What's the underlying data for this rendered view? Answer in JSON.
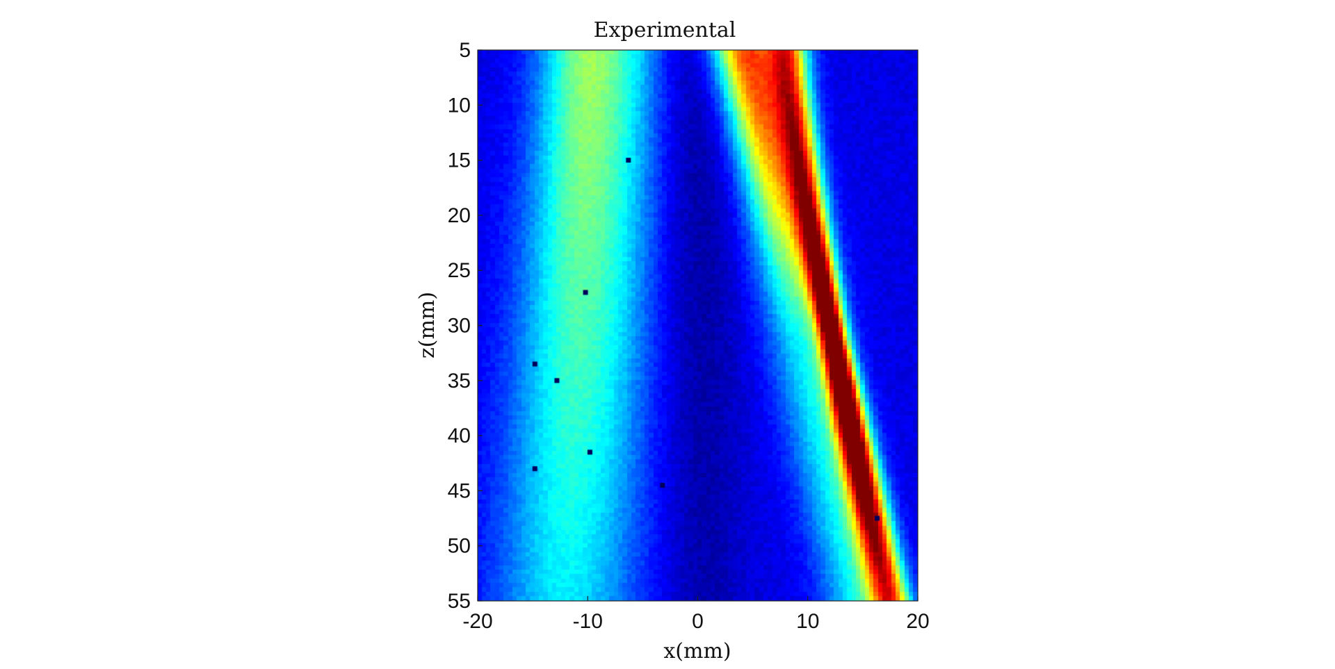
{
  "chart_data": {
    "type": "heatmap",
    "title": "Experimental",
    "xlabel": "x(mm)",
    "ylabel": "z(mm)",
    "xlim": [
      -20,
      20
    ],
    "ylim": [
      5,
      55
    ],
    "y_reversed": true,
    "colormap": "jet",
    "grid": false,
    "x_ticks": [
      -20,
      -10,
      0,
      10,
      20
    ],
    "x_tick_labels": [
      "-20",
      "-10",
      "0",
      "10",
      "20"
    ],
    "y_ticks": [
      5,
      10,
      15,
      20,
      25,
      30,
      35,
      40,
      45,
      50,
      55
    ],
    "y_tick_labels": [
      "5",
      "10",
      "15",
      "20",
      "25",
      "30",
      "35",
      "40",
      "45",
      "50",
      "55"
    ],
    "grid_size": {
      "nx": 100,
      "nz": 125
    },
    "features": [
      {
        "kind": "main-beam",
        "x_start": 8.2,
        "z_start": 5,
        "x_end": 17.5,
        "z_end": 55,
        "peak_intensity": 1.0,
        "peak_z": 36
      },
      {
        "kind": "left-beam",
        "x_start": -10,
        "z_start": 5,
        "x_end": -12,
        "z_end": 55,
        "peak_intensity": 0.45
      },
      {
        "kind": "central-beam",
        "x_start": 4,
        "z_start": 5,
        "x_end": 10,
        "z_end": 28,
        "peak_intensity": 0.5
      }
    ],
    "dropout_pixels": [
      {
        "x": -6.3,
        "z": 15
      },
      {
        "x": -10.2,
        "z": 27
      },
      {
        "x": -14.8,
        "z": 33.5
      },
      {
        "x": -12.8,
        "z": 35
      },
      {
        "x": -9.8,
        "z": 41.5
      },
      {
        "x": -14.8,
        "z": 43
      },
      {
        "x": -3.2,
        "z": 44.5
      },
      {
        "x": 16.3,
        "z": 47.5
      }
    ]
  }
}
